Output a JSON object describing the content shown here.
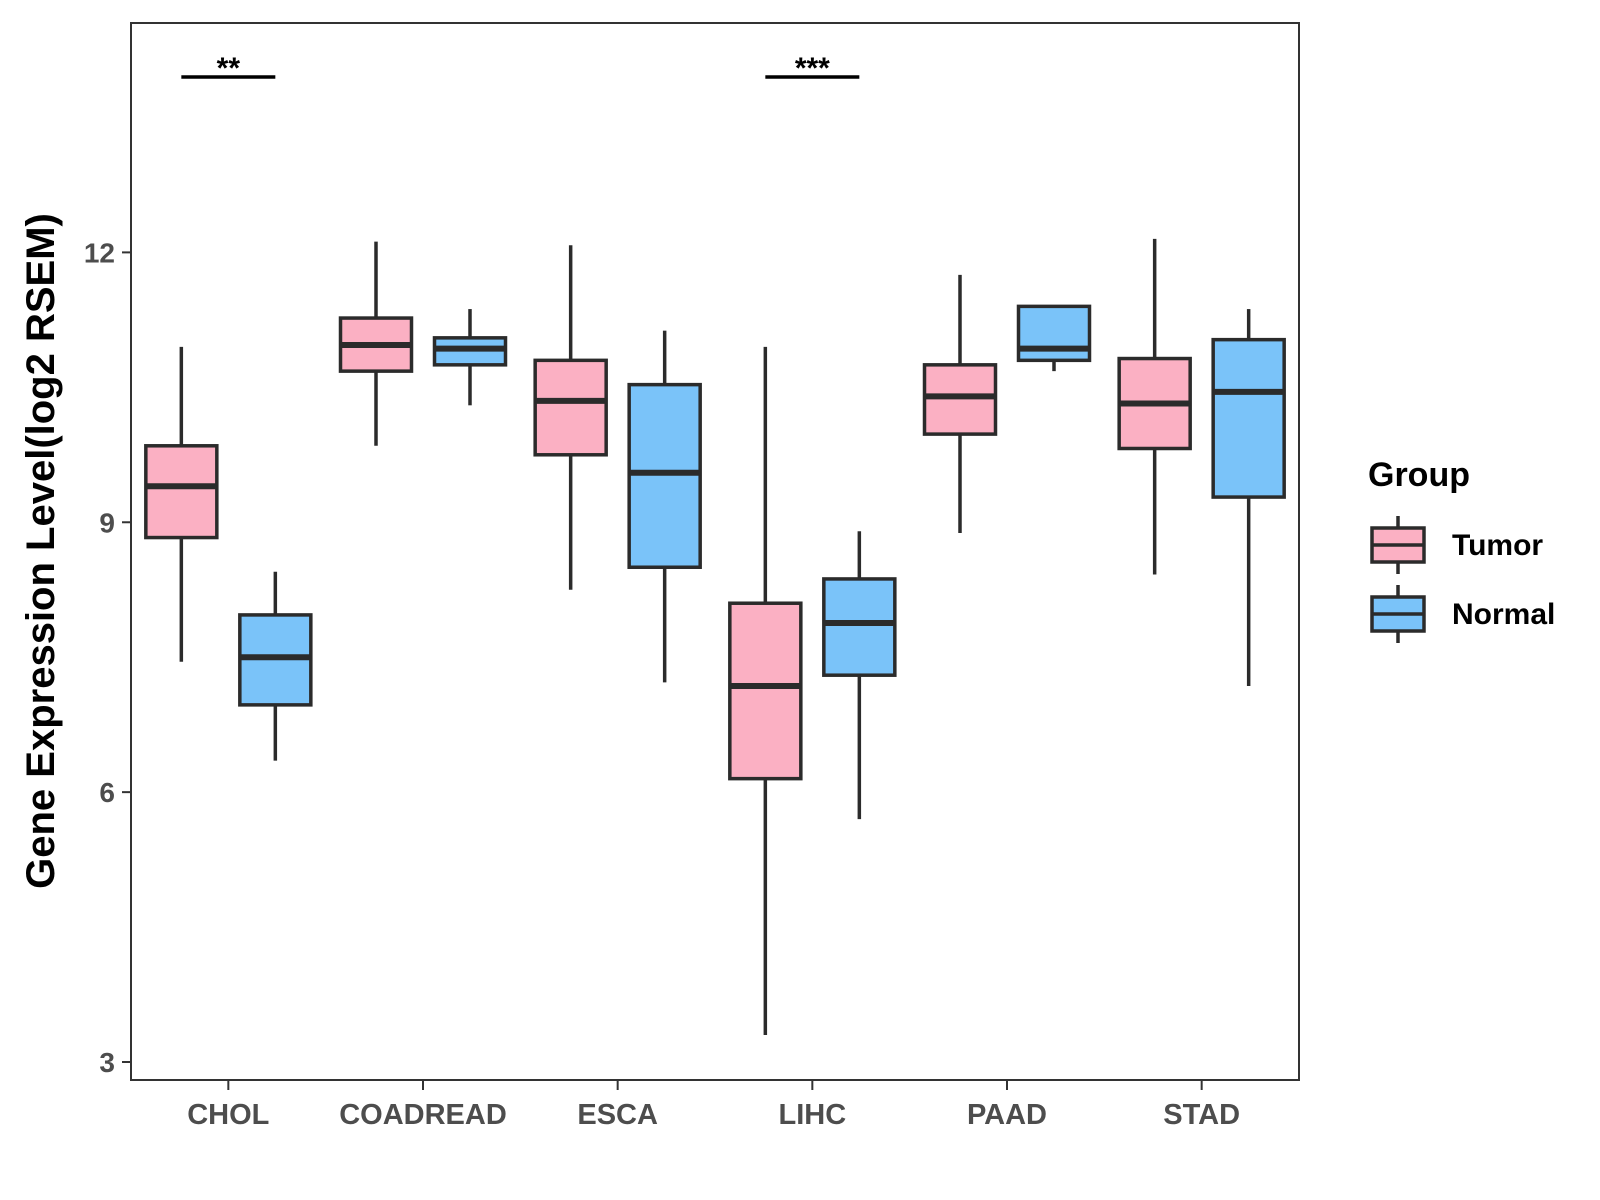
{
  "chart_data": {
    "type": "boxplot",
    "title": "",
    "xlabel": "",
    "ylabel": "Gene Expression Level(log2 RSEM)",
    "ylim": [
      2.8,
      14.55
    ],
    "yticks": [
      3,
      6,
      9,
      12
    ],
    "ytick_labels": [
      "3",
      "6",
      "9",
      "12"
    ],
    "grid": false,
    "categories": [
      "CHOL",
      "COADREAD",
      "ESCA",
      "LIHC",
      "PAAD",
      "STAD"
    ],
    "legend": {
      "title": "Group",
      "position": "right",
      "entries": [
        {
          "name": "Tumor",
          "color": "#fbb0c3"
        },
        {
          "name": "Normal",
          "color": "#7ac3f9"
        }
      ]
    },
    "series": [
      {
        "name": "Tumor",
        "color": "#fbb0c3",
        "boxes": [
          {
            "category": "CHOL",
            "whisker_low": 7.45,
            "q1": 8.83,
            "median": 9.4,
            "q3": 9.85,
            "whisker_high": 10.95
          },
          {
            "category": "COADREAD",
            "whisker_low": 9.85,
            "q1": 10.68,
            "median": 10.97,
            "q3": 11.27,
            "whisker_high": 12.12
          },
          {
            "category": "ESCA",
            "whisker_low": 8.25,
            "q1": 9.75,
            "median": 10.35,
            "q3": 10.8,
            "whisker_high": 12.08
          },
          {
            "category": "LIHC",
            "whisker_low": 3.3,
            "q1": 6.15,
            "median": 7.18,
            "q3": 8.1,
            "whisker_high": 10.95
          },
          {
            "category": "PAAD",
            "whisker_low": 8.88,
            "q1": 9.98,
            "median": 10.4,
            "q3": 10.75,
            "whisker_high": 11.75
          },
          {
            "category": "STAD",
            "whisker_low": 8.42,
            "q1": 9.82,
            "median": 10.32,
            "q3": 10.82,
            "whisker_high": 12.15
          }
        ]
      },
      {
        "name": "Normal",
        "color": "#7ac3f9",
        "boxes": [
          {
            "category": "CHOL",
            "whisker_low": 6.35,
            "q1": 6.97,
            "median": 7.5,
            "q3": 7.97,
            "whisker_high": 8.45
          },
          {
            "category": "COADREAD",
            "whisker_low": 10.3,
            "q1": 10.75,
            "median": 10.93,
            "q3": 11.05,
            "whisker_high": 11.37
          },
          {
            "category": "ESCA",
            "whisker_low": 7.22,
            "q1": 8.5,
            "median": 9.55,
            "q3": 10.53,
            "whisker_high": 11.13
          },
          {
            "category": "LIHC",
            "whisker_low": 5.7,
            "q1": 7.3,
            "median": 7.88,
            "q3": 8.37,
            "whisker_high": 8.9
          },
          {
            "category": "PAAD",
            "whisker_low": 10.68,
            "q1": 10.8,
            "median": 10.93,
            "q3": 11.4,
            "whisker_high": 11.4
          },
          {
            "category": "STAD",
            "whisker_low": 7.18,
            "q1": 9.28,
            "median": 10.45,
            "q3": 11.03,
            "whisker_high": 11.37
          }
        ]
      }
    ],
    "annotations": [
      {
        "category": "CHOL",
        "label": "**",
        "y": 13.95
      },
      {
        "category": "LIHC",
        "label": "***",
        "y": 13.95
      }
    ]
  }
}
